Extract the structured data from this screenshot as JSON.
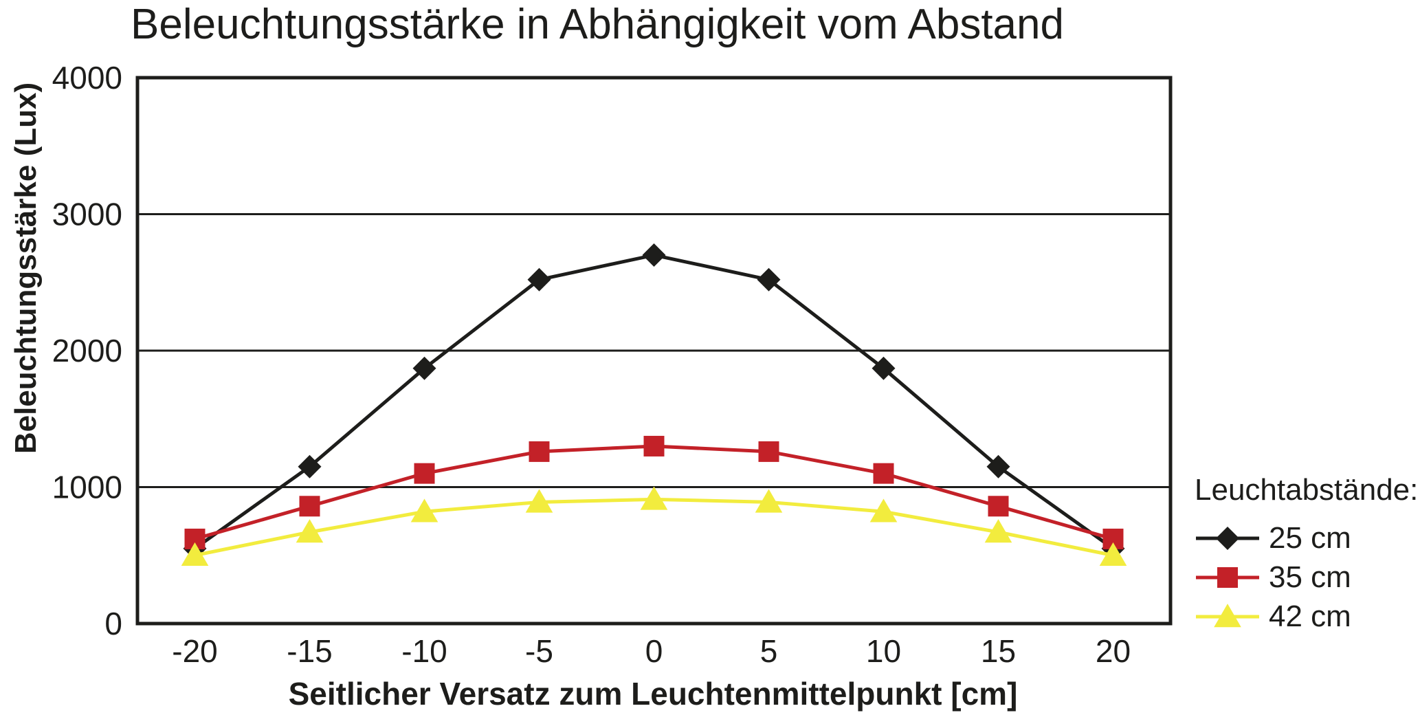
{
  "chart_data": {
    "type": "line",
    "title": "Beleuchtungsstärke in Abhängigkeit vom Abstand",
    "xlabel": "Seitlicher Versatz zum Leuchtenmittelpunkt [cm]",
    "ylabel": "Beleuchtungsstärke (Lux)",
    "x": [
      -20,
      -15,
      -10,
      -5,
      0,
      5,
      10,
      15,
      20
    ],
    "xlim": [
      -22.5,
      22.5
    ],
    "ylim": [
      0,
      4000
    ],
    "yticks": [
      0,
      1000,
      2000,
      3000,
      4000
    ],
    "grid": "horizontal",
    "frame_color": "#1d1d1b",
    "legend_title": "Leuchtabstände:",
    "legend_position": "right",
    "series": [
      {
        "name": "25 cm",
        "color": "#1d1d1b",
        "marker": "diamond",
        "values": [
          550,
          1150,
          1870,
          2520,
          2700,
          2520,
          1870,
          1150,
          550
        ]
      },
      {
        "name": "35 cm",
        "color": "#c32128",
        "marker": "square",
        "values": [
          620,
          860,
          1100,
          1260,
          1300,
          1260,
          1100,
          860,
          620
        ]
      },
      {
        "name": "42 cm",
        "color": "#f2ec3e",
        "marker": "triangle",
        "values": [
          500,
          670,
          820,
          890,
          910,
          890,
          820,
          670,
          500
        ]
      }
    ]
  }
}
